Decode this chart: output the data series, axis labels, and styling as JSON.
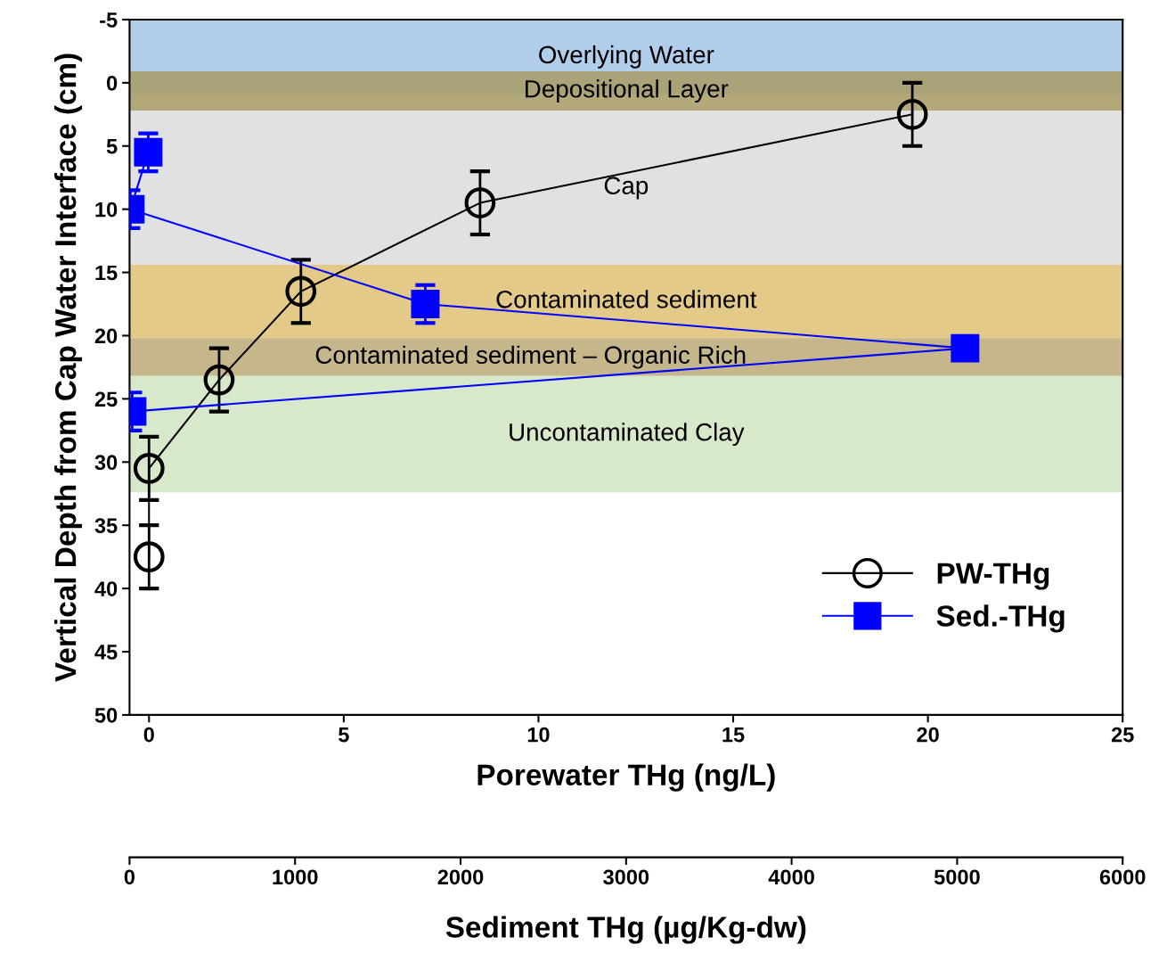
{
  "chart_data": {
    "type": "line",
    "xlabel": "Porewater THg (ng/L)",
    "ylabel": "Vertical Depth from Cap Water Interface (cm)",
    "x2label": "Sediment THg (µg/Kg-dw)",
    "xlim": [
      -0.5,
      25
    ],
    "xticks": [
      0,
      5,
      10,
      15,
      20,
      25
    ],
    "x2lim": [
      0,
      6000
    ],
    "x2ticks": [
      0,
      1000,
      2000,
      3000,
      4000,
      5000,
      6000
    ],
    "ylim": [
      50,
      -5
    ],
    "yticks": [
      -5,
      0,
      5,
      10,
      15,
      20,
      25,
      30,
      35,
      40,
      45,
      50
    ],
    "legend": "bottom right",
    "grid": false,
    "series": [
      {
        "name": "PW-THg",
        "color": "#000000",
        "marker": "circle",
        "x": [
          0,
          0,
          1.8,
          3.9,
          8.5,
          19.6
        ],
        "values": [
          37.5,
          30.5,
          23.5,
          16.5,
          9.5,
          2.5
        ],
        "errors": [
          2.5,
          2.5,
          2.5,
          2.5,
          2.5,
          2.5
        ]
      },
      {
        "name": "Sed.-THg",
        "color": "#0000ff",
        "marker": "square",
        "axis": "x2",
        "x": [
          113,
          5,
          1787,
          5048,
          16
        ],
        "values": [
          5.5,
          10,
          17.5,
          21,
          26
        ],
        "errors": [
          1.5,
          1.5,
          1.5,
          null,
          1.5
        ]
      }
    ],
    "bands": [
      {
        "axis": "y",
        "from": -5,
        "to": 0.9,
        "label": "Overlying Water",
        "color": "#a8c8e8"
      },
      {
        "axis": "y",
        "from": -0.9,
        "to": 2.2,
        "label": "Depositional Layer",
        "color": "#ab9f6c"
      },
      {
        "axis": "y",
        "from": 2.2,
        "to": 14.4,
        "label": "Cap",
        "color": "#dedede"
      },
      {
        "axis": "y",
        "from": 14.4,
        "to": 20.2,
        "label": "Contaminated sediment",
        "color": "#e0c47c"
      },
      {
        "axis": "y",
        "from": 20.2,
        "to": 23.2,
        "label": "Contaminated sediment – Organic Rich",
        "color": "#bfae7e"
      },
      {
        "axis": "y",
        "from": 23.2,
        "to": 32.4,
        "label": "Uncontaminated Clay",
        "color": "#d4e6c4"
      }
    ]
  }
}
